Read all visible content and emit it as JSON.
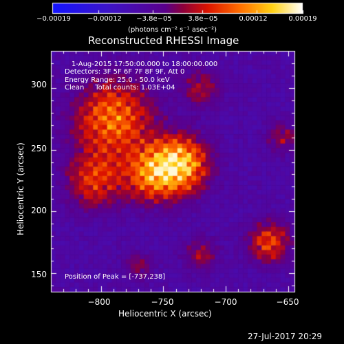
{
  "chart_data": {
    "type": "heatmap",
    "title": "Reconstructed RHESSI Image",
    "xlabel": "Heliocentric X (arcsec)",
    "ylabel": "Heliocentric Y (arcsec)",
    "xlim": [
      -840,
      -645
    ],
    "ylim": [
      135,
      330
    ],
    "x_ticks": [
      -800,
      -750,
      -700,
      -650
    ],
    "x_tick_labels": [
      "−800",
      "−750",
      "−700",
      "−650"
    ],
    "y_ticks": [
      150,
      200,
      250,
      300
    ],
    "y_tick_labels": [
      "150",
      "200",
      "250",
      "300"
    ],
    "colorbar": {
      "range": [
        -0.00019,
        0.00019
      ],
      "ticks": [
        -0.00019,
        -0.00012,
        -3.8e-05,
        3.8e-05,
        0.00012,
        0.00019
      ],
      "tick_labels": [
        "−0.00019",
        "−0.00012",
        "−3.8e−05",
        "3.8e−05",
        "0.00012",
        "0.00019"
      ],
      "unit_label": "(photons cm⁻² s⁻¹ asec⁻²)"
    },
    "annotations": {
      "time_range": "1-Aug-2015 17:50:00.000 to 18:00:00.000",
      "detectors": "Detectors: 3F 5F 6F 7F 8F 9F, Att 0",
      "energy_range": "Energy Range: 25.0 - 50.0 keV",
      "clean_counts": "Clean     Total counts: 1.03E+04",
      "peak": "Position of Peak = [-737,238]"
    },
    "peak_position": [
      -737,
      238
    ],
    "grid": false
  },
  "footer": {
    "timestamp": "27-Jul-2017 20:29"
  }
}
